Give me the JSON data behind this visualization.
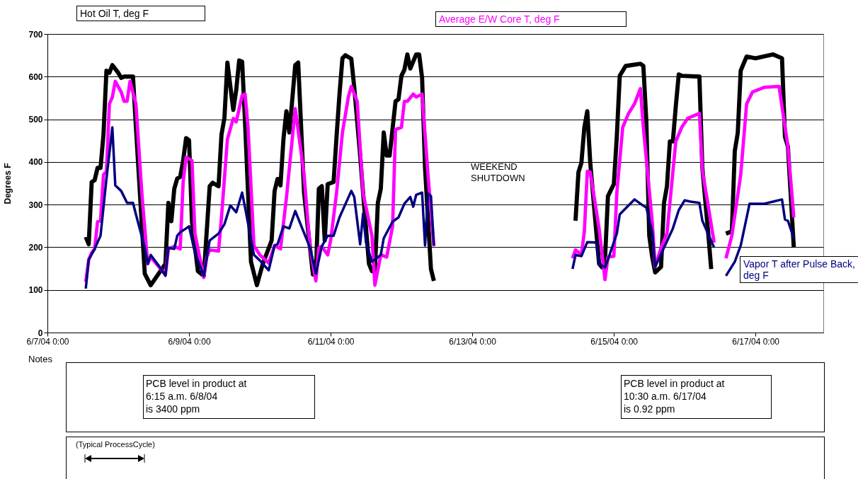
{
  "chart_data": {
    "type": "line",
    "ylabel": "Degrees F",
    "xlim": [
      "--06-07",
      "--06-17T23:00"
    ],
    "xticks": [
      {
        "value": "--06-07",
        "label": "6/7/04 0:00"
      },
      {
        "value": "--06-09",
        "label": "6/9/04 0:00"
      },
      {
        "value": "--06-11",
        "label": "6/11/04 0:00"
      },
      {
        "value": "--06-13",
        "label": "6/13/04 0:00"
      },
      {
        "value": "--06-15",
        "label": "6/15/04 0:00"
      },
      {
        "value": "--06-17",
        "label": "6/17/04 0:00"
      }
    ],
    "ylim": [
      0,
      700
    ],
    "yticks": [
      0,
      100,
      200,
      300,
      400,
      500,
      600,
      700
    ],
    "grid": "y",
    "series": [
      {
        "name": "Hot Oil T, deg F",
        "color": "#000000",
        "x": [
          "--06-07T13:00",
          "--06-07T14:00",
          "--06-07T15:00",
          "--06-07T16:00",
          "--06-07T17:00",
          "--06-07T18:00",
          "--06-07T19:00",
          "--06-07T20:00",
          "--06-07T21:00",
          "--06-07T22:00",
          "--06-08T00:00",
          "--06-08T01:00",
          "--06-08T02:00",
          "--06-08T05:00",
          "--06-08T06:00",
          "--06-08T09:00",
          "--06-08T11:00",
          "--06-08T16:00",
          "--06-08T17:00",
          "--06-08T18:00",
          "--06-08T19:00",
          "--06-08T20:00",
          "--06-08T21:00",
          "--06-08T22:00",
          "--06-08T23:00",
          "--06-09T00:00",
          "--06-09T01:00",
          "--06-09T03:00",
          "--06-09T05:00",
          "--06-09T07:00",
          "--06-09T08:00",
          "--06-09T10:00",
          "--06-09T11:00",
          "--06-09T12:00",
          "--06-09T13:00",
          "--06-09T15:00",
          "--06-09T16:00",
          "--06-09T17:00",
          "--06-09T18:00",
          "--06-09T19:00",
          "--06-09T21:00",
          "--06-09T23:00",
          "--06-10T01:00",
          "--06-10T04:00",
          "--06-10T05:00",
          "--06-10T06:00",
          "--06-10T07:00",
          "--06-10T08:00",
          "--06-10T09:00",
          "--06-10T10:00",
          "--06-10T11:00",
          "--06-10T12:00",
          "--06-10T13:00",
          "--06-10T14:00",
          "--06-10T15:00",
          "--06-10T17:00",
          "--06-10T18:00",
          "--06-10T19:00",
          "--06-10T20:00",
          "--06-10T21:00",
          "--06-10T22:00",
          "--06-10T23:00",
          "--06-11T01:00",
          "--06-11T02:00",
          "--06-11T03:00",
          "--06-11T04:00",
          "--06-11T05:00",
          "--06-11T07:00",
          "--06-11T08:00",
          "--06-11T10:00",
          "--06-11T11:00",
          "--06-11T13:00",
          "--06-11T14:00",
          "--06-11T15:00",
          "--06-11T16:00",
          "--06-11T17:00",
          "--06-11T18:00",
          "--06-11T19:00",
          "--06-11T20:00",
          "--06-11T22:00",
          "--06-11T23:00",
          "--06-12T00:00",
          "--06-12T01:00",
          "--06-12T02:00",
          "--06-12T03:00",
          "--06-12T05:00",
          "--06-12T06:00",
          "--06-12T07:00",
          "--06-12T08:00",
          "--06-12T10:00",
          "--06-12T11:00",
          "--06-13T12:00",
          "--06-14T11:00",
          "--06-14T12:00",
          "--06-14T13:00",
          "--06-14T14:00",
          "--06-14T15:00",
          "--06-14T16:00",
          "--06-14T19:00",
          "--06-14T20:00",
          "--06-14T21:00",
          "--06-14T22:00",
          "--06-15T00:00",
          "--06-15T01:00",
          "--06-15T02:00",
          "--06-15T04:00",
          "--06-15T06:00",
          "--06-15T09:00",
          "--06-15T10:00",
          "--06-15T11:00",
          "--06-15T12:00",
          "--06-15T13:00",
          "--06-15T14:00",
          "--06-15T16:00",
          "--06-15T17:00",
          "--06-15T18:00",
          "--06-15T19:00",
          "--06-15T20:00",
          "--06-15T21:00",
          "--06-15T22:00",
          "--06-15T23:00",
          "--06-16T05:00",
          "--06-16T06:00",
          "--06-16T08:00",
          "--06-16T09:00",
          "--06-16T12:00",
          "--06-16T14:00",
          "--06-16T16:00",
          "--06-16T17:00",
          "--06-16T18:00",
          "--06-16T19:00",
          "--06-16T21:00",
          "--06-17T00:00",
          "--06-17T06:00",
          "--06-17T09:00",
          "--06-17T10:00",
          "--06-17T11:00",
          "--06-17T13:00"
        ],
        "values": [
          224,
          207,
          353,
          357,
          386,
          386,
          464,
          614,
          609,
          627,
          609,
          597,
          600,
          600,
          481,
          138,
          111,
          161,
          304,
          261,
          337,
          361,
          365,
          403,
          456,
          451,
          260,
          144,
          133,
          343,
          351,
          343,
          464,
          503,
          633,
          522,
          569,
          638,
          635,
          491,
          166,
          111,
          161,
          216,
          332,
          360,
          345,
          453,
          519,
          469,
          547,
          627,
          633,
          481,
          327,
          199,
          136,
          138,
          337,
          343,
          216,
          348,
          353,
          459,
          559,
          643,
          650,
          642,
          575,
          415,
          327,
          161,
          144,
          144,
          304,
          337,
          469,
          415,
          415,
          542,
          547,
          602,
          616,
          652,
          619,
          652,
          652,
          597,
          386,
          149,
          121,
          null,
          262,
          376,
          398,
          481,
          519,
          398,
          161,
          153,
          171,
          320,
          348,
          459,
          602,
          625,
          627,
          630,
          625,
          497,
          227,
          177,
          141,
          154,
          304,
          343,
          448,
          448,
          531,
          605,
          602,
          600,
          386,
          232,
          149,
          null,
          232,
          237,
          426,
          468,
          614,
          647,
          643,
          652,
          643,
          459,
          436,
          199
        ]
      },
      {
        "name": "Average E/W Core T, deg F",
        "color": "#ff00ff",
        "x": [
          "--06-07T13:00",
          "--06-07T14:00",
          "--06-07T15:00",
          "--06-07T16:00",
          "--06-07T17:00",
          "--06-07T18:00",
          "--06-07T19:00",
          "--06-07T20:00",
          "--06-07T21:00",
          "--06-07T22:00",
          "--06-07T23:00",
          "--06-08T01:00",
          "--06-08T02:00",
          "--06-08T03:00",
          "--06-08T04:00",
          "--06-08T06:00",
          "--06-08T08:00",
          "--06-08T10:00",
          "--06-08T11:00",
          "--06-08T16:00",
          "--06-08T17:00",
          "--06-08T19:00",
          "--06-08T21:00",
          "--06-08T22:00",
          "--06-08T23:00",
          "--06-09T01:00",
          "--06-09T02:00",
          "--06-09T05:00",
          "--06-09T06:00",
          "--06-09T07:00",
          "--06-09T10:00",
          "--06-09T11:00",
          "--06-09T13:00",
          "--06-09T15:00",
          "--06-09T16:00",
          "--06-09T18:00",
          "--06-09T19:00",
          "--06-09T20:00",
          "--06-09T22:00",
          "--06-10T00:00",
          "--06-10T03:00",
          "--06-10T05:00",
          "--06-10T07:00",
          "--06-10T09:00",
          "--06-10T12:00",
          "--06-10T15:00",
          "--06-10T17:00",
          "--06-10T19:00",
          "--06-10T20:00",
          "--06-10T21:00",
          "--06-10T23:00",
          "--06-11T00:00",
          "--06-11T02:00",
          "--06-11T04:00",
          "--06-11T06:00",
          "--06-11T07:00",
          "--06-11T09:00",
          "--06-11T11:00",
          "--06-11T14:00",
          "--06-11T15:00",
          "--06-11T17:00",
          "--06-11T19:00",
          "--06-11T21:00",
          "--06-11T22:00",
          "--06-12T00:00",
          "--06-12T01:00",
          "--06-12T02:00",
          "--06-12T04:00",
          "--06-12T05:00",
          "--06-12T07:00",
          "--06-12T09:00",
          "--06-12T11:00",
          "--06-13T12:00",
          "--06-14T10:00",
          "--06-14T11:00",
          "--06-14T13:00",
          "--06-14T14:00",
          "--06-14T15:00",
          "--06-14T16:00",
          "--06-14T19:00",
          "--06-14T21:00",
          "--06-14T22:00",
          "--06-15T00:00",
          "--06-15T01:00",
          "--06-15T03:00",
          "--06-15T05:00",
          "--06-15T07:00",
          "--06-15T09:00",
          "--06-15T10:00",
          "--06-15T13:00",
          "--06-15T14:00",
          "--06-15T16:00",
          "--06-15T18:00",
          "--06-15T21:00",
          "--06-15T23:00",
          "--06-16T01:00",
          "--06-16T05:00",
          "--06-16T06:00",
          "--06-16T10:00",
          "--06-16T12:00",
          "--06-16T14:00",
          "--06-16T16:00",
          "--06-16T19:00",
          "--06-16T21:00",
          "--06-16T23:00",
          "--06-17T03:00",
          "--06-17T08:00",
          "--06-17T11:00",
          "--06-17T13:00"
        ],
        "values": [
          119,
          171,
          187,
          196,
          260,
          262,
          370,
          378,
          536,
          552,
          589,
          564,
          542,
          542,
          589,
          536,
          327,
          161,
          177,
          136,
          196,
          202,
          196,
          353,
          411,
          403,
          232,
          129,
          177,
          194,
          191,
          270,
          453,
          502,
          494,
          556,
          559,
          481,
          204,
          182,
          163,
          204,
          196,
          315,
          525,
          370,
          199,
          121,
          199,
          202,
          182,
          216,
          327,
          469,
          552,
          577,
          542,
          327,
          227,
          111,
          182,
          177,
          249,
          476,
          481,
          542,
          542,
          559,
          552,
          559,
          370,
          202,
          null,
          174,
          194,
          182,
          237,
          378,
          376,
          244,
          124,
          177,
          179,
          327,
          481,
          514,
          536,
          572,
          481,
          260,
          154,
          199,
          232,
          448,
          481,
          502,
          514,
          381,
          211,
          null,
          174,
          227,
          370,
          536,
          564,
          575,
          577,
          436,
          270
        ]
      },
      {
        "name": "Vapor T after Pulse Back, deg F",
        "color": "#000080",
        "x": [
          "--06-07T13:00",
          "--06-07T14:00",
          "--06-07T16:00",
          "--06-07T18:00",
          "--06-07T20:00",
          "--06-07T22:00",
          "--06-07T23:00",
          "--06-08T01:00",
          "--06-08T03:00",
          "--06-08T05:00",
          "--06-08T06:00",
          "--06-08T09:00",
          "--06-08T10:00",
          "--06-08T11:00",
          "--06-08T14:00",
          "--06-08T16:00",
          "--06-08T17:00",
          "--06-08T19:00",
          "--06-08T20:00",
          "--06-08T21:00",
          "--06-08T23:00",
          "--06-09T00:00",
          "--06-09T02:00",
          "--06-09T05:00",
          "--06-09T07:00",
          "--06-09T10:00",
          "--06-09T12:00",
          "--06-09T14:00",
          "--06-09T16:00",
          "--06-09T18:00",
          "--06-09T19:00",
          "--06-09T22:00",
          "--06-10T00:00",
          "--06-10T03:00",
          "--06-10T05:00",
          "--06-10T06:00",
          "--06-10T08:00",
          "--06-10T10:00",
          "--06-10T12:00",
          "--06-10T17:00",
          "--06-10T19:00",
          "--06-10T21:00",
          "--06-10T23:00",
          "--06-11T01:00",
          "--06-11T03:00",
          "--06-11T07:00",
          "--06-11T08:00",
          "--06-11T10:00",
          "--06-11T11:00",
          "--06-11T12:00",
          "--06-11T14:00",
          "--06-11T17:00",
          "--06-11T18:00",
          "--06-11T21:00",
          "--06-11T23:00",
          "--06-12T01:00",
          "--06-12T03:00",
          "--06-12T04:00",
          "--06-12T05:00",
          "--06-12T07:00",
          "--06-12T08:00",
          "--06-12T09:00",
          "--06-12T10:00",
          "--06-12T11:00",
          "--06-13T12:00",
          "--06-14T10:00",
          "--06-14T11:00",
          "--06-14T13:00",
          "--06-14T15:00",
          "--06-14T18:00",
          "--06-14T19:00",
          "--06-14T21:00",
          "--06-14T22:00",
          "--06-15T01:00",
          "--06-15T02:00",
          "--06-15T05:00",
          "--06-15T07:00",
          "--06-15T09:00",
          "--06-15T11:00",
          "--06-15T13:00",
          "--06-15T14:00",
          "--06-15T17:00",
          "--06-15T20:00",
          "--06-15T22:00",
          "--06-16T00:00",
          "--06-16T02:00",
          "--06-16T05:00",
          "--06-16T06:00",
          "--06-16T10:00",
          "--06-16T12:00",
          "--06-16T14:00",
          "--06-16T17:00",
          "--06-16T19:00",
          "--06-16T22:00",
          "--06-17T03:00",
          "--06-17T09:00",
          "--06-17T10:00",
          "--06-17T11:00",
          "--06-17T13:00"
        ],
        "values": [
          103,
          171,
          196,
          227,
          360,
          481,
          345,
          332,
          304,
          304,
          277,
          199,
          161,
          182,
          154,
          133,
          199,
          196,
          227,
          235,
          244,
          249,
          187,
          133,
          216,
          232,
          254,
          298,
          282,
          328,
          293,
          182,
          169,
          146,
          204,
          207,
          249,
          244,
          285,
          199,
          138,
          202,
          227,
          227,
          270,
          332,
          318,
          207,
          279,
          211,
          166,
          182,
          221,
          260,
          270,
          302,
          318,
          295,
          323,
          328,
          204,
          326,
          320,
          204,
          null,
          149,
          182,
          179,
          212,
          211,
          161,
          153,
          171,
          232,
          277,
          298,
          312,
          302,
          293,
          237,
          154,
          199,
          244,
          287,
          310,
          307,
          304,
          262,
          199,
          null,
          133,
          166,
          204,
          302,
          302,
          312,
          265,
          262,
          221
        ]
      }
    ],
    "annotations": [
      "WEEKEND SHUTDOWN",
      "Notes",
      "PCB level in product at\n6:15 a.m. 6/8/04\nis 3400 ppm",
      "PCB level in product at\n10:30 a.m. 6/17/04\nis 0.92 ppm",
      "(Typical ProcessCycle)"
    ]
  }
}
